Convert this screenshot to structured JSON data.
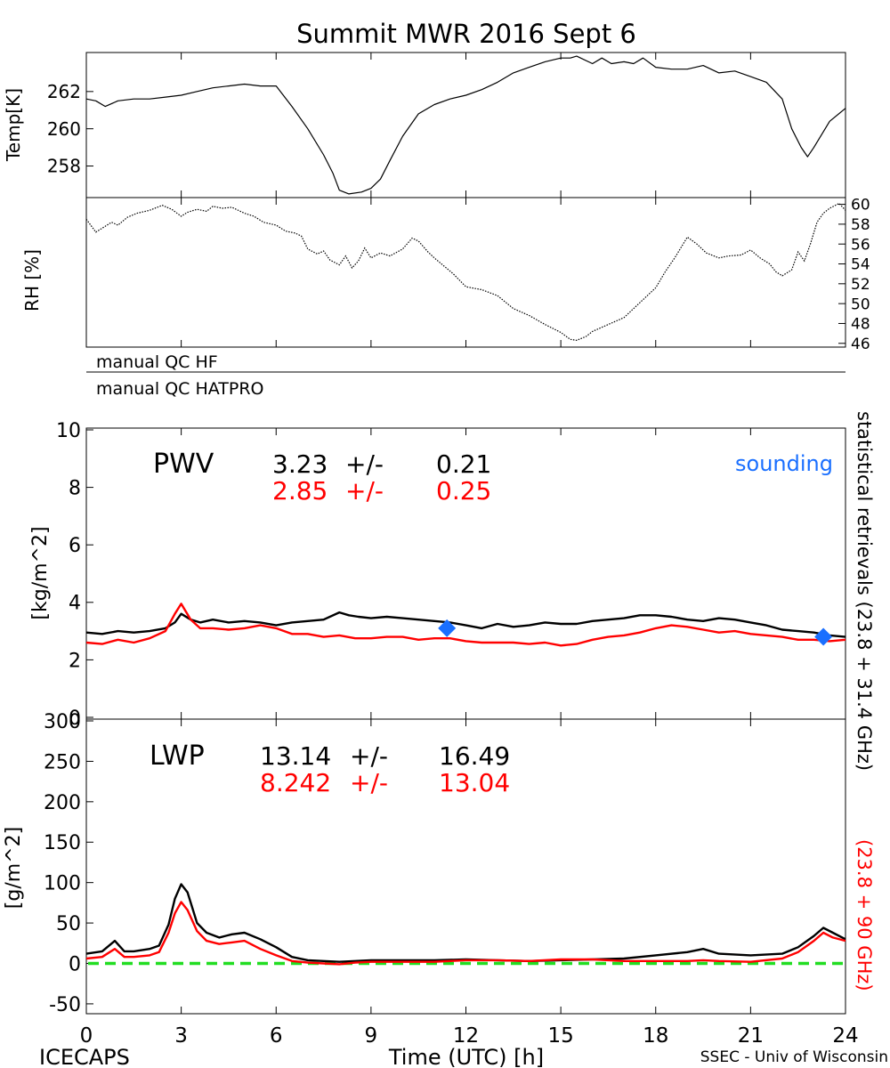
{
  "title": "Summit MWR 2016 Sept  6",
  "footer": {
    "left": "ICECAPS",
    "center": "Time (UTC) [h]",
    "right": "SSEC - Univ of Wisconsin"
  },
  "qc_labels": [
    "manual QC HF",
    "manual QC HATPRO"
  ],
  "right_side_labels": {
    "black": "statistical retrievals (23.8 + 31.4 GHz)",
    "red": "(23.8 + 90 GHz)"
  },
  "colors": {
    "black_series": "#000000",
    "red_series": "#ff0000",
    "sounding": "#1a6fff",
    "zero_line": "#22dd22"
  },
  "chart_data": [
    {
      "id": "temp",
      "type": "line",
      "ylabel": "Temp[K]",
      "ylim": [
        256.4,
        264.0
      ],
      "xlim": [
        0,
        24
      ],
      "yticks": [
        258,
        260,
        262
      ],
      "series": [
        {
          "color": "black",
          "x": [
            0,
            0.3,
            0.6,
            1,
            1.5,
            2,
            2.5,
            3,
            3.5,
            4,
            4.5,
            5,
            5.5,
            6,
            6.5,
            7,
            7.5,
            7.8,
            8,
            8.3,
            8.7,
            9,
            9.3,
            9.6,
            10,
            10.5,
            11,
            11.5,
            12,
            12.5,
            13,
            13.5,
            14,
            14.5,
            15,
            15.3,
            15.5,
            16,
            16.3,
            16.6,
            17,
            17.3,
            17.6,
            18,
            18.5,
            19,
            19.5,
            20,
            20.5,
            21,
            21.5,
            22,
            22.3,
            22.6,
            22.8,
            23,
            23.5,
            24
          ],
          "values": [
            261.6,
            261.5,
            261.2,
            261.5,
            261.6,
            261.6,
            261.7,
            261.8,
            262.0,
            262.2,
            262.3,
            262.4,
            262.3,
            262.3,
            261.2,
            260.0,
            258.6,
            257.6,
            256.7,
            256.5,
            256.6,
            256.8,
            257.3,
            258.3,
            259.6,
            260.8,
            261.3,
            261.6,
            261.8,
            262.1,
            262.5,
            263.0,
            263.3,
            263.6,
            263.8,
            263.8,
            263.9,
            263.5,
            263.8,
            263.5,
            263.6,
            263.5,
            263.8,
            263.3,
            263.2,
            263.2,
            263.4,
            263.0,
            263.1,
            262.8,
            262.5,
            261.6,
            260.0,
            259.0,
            258.5,
            259.0,
            260.4,
            261.1
          ]
        }
      ]
    },
    {
      "id": "rh",
      "type": "scatter",
      "ylabel": "RH [%]",
      "ylim": [
        45.8,
        60.5
      ],
      "xlim": [
        0,
        24
      ],
      "yticks": [
        46,
        48,
        50,
        52,
        54,
        56,
        58,
        60
      ],
      "series": [
        {
          "color": "black",
          "x": [
            0,
            0.3,
            0.5,
            0.8,
            1,
            1.3,
            1.6,
            2,
            2.4,
            2.7,
            3,
            3.2,
            3.5,
            3.8,
            4,
            4.3,
            4.6,
            5,
            5.3,
            5.6,
            6,
            6.3,
            6.6,
            6.8,
            7,
            7.3,
            7.5,
            7.7,
            8,
            8.2,
            8.4,
            8.6,
            8.8,
            9,
            9.3,
            9.6,
            10,
            10.3,
            10.5,
            10.8,
            11,
            11.3,
            11.6,
            12,
            12.5,
            13,
            13.5,
            14,
            14.5,
            15,
            15.3,
            15.5,
            15.8,
            16,
            16.5,
            17,
            17.5,
            18,
            18.3,
            18.6,
            19,
            19.3,
            19.6,
            20,
            20.3,
            20.7,
            21,
            21.3,
            21.6,
            21.8,
            22,
            22.3,
            22.5,
            22.7,
            22.9,
            23.1,
            23.3,
            23.5,
            23.8,
            24
          ],
          "values": [
            58.5,
            57.2,
            57.6,
            58.2,
            57.9,
            58.7,
            59.1,
            59.4,
            59.9,
            59.5,
            58.8,
            59.2,
            59.5,
            59.3,
            59.8,
            59.6,
            59.7,
            59.1,
            58.8,
            58.2,
            57.9,
            57.3,
            57.1,
            56.8,
            55.5,
            55.0,
            55.3,
            54.4,
            53.9,
            54.8,
            53.6,
            54.3,
            55.6,
            54.6,
            55.1,
            54.8,
            55.5,
            56.6,
            56.3,
            55.2,
            54.6,
            53.8,
            53.0,
            51.7,
            51.4,
            50.8,
            49.5,
            48.8,
            47.9,
            47.1,
            46.4,
            46.3,
            46.7,
            47.2,
            47.9,
            48.6,
            50.1,
            51.6,
            53.2,
            54.6,
            56.7,
            56.0,
            55.1,
            54.6,
            54.8,
            54.9,
            55.4,
            54.6,
            54.0,
            53.2,
            52.8,
            53.4,
            55.2,
            54.3,
            56.1,
            58.2,
            59.1,
            59.6,
            60.1,
            59.4
          ]
        }
      ]
    },
    {
      "id": "pwv",
      "type": "line",
      "title": "PWV",
      "ylabel": "[kg/m^2]",
      "ylim": [
        0,
        10
      ],
      "xlim": [
        0,
        24
      ],
      "yticks": [
        0,
        2,
        4,
        6,
        8,
        10
      ],
      "stats": [
        {
          "color": "black",
          "mean": "3.23",
          "pm": "+/-",
          "std": "0.21"
        },
        {
          "color": "red",
          "mean": "2.85",
          "pm": "+/-",
          "std": "0.25"
        }
      ],
      "legend": "sounding",
      "series": [
        {
          "color": "black",
          "x": [
            0,
            0.5,
            1,
            1.5,
            2,
            2.5,
            2.8,
            3,
            3.3,
            3.6,
            4,
            4.5,
            5,
            5.5,
            6,
            6.5,
            7,
            7.5,
            8,
            8.3,
            8.6,
            9,
            9.5,
            10,
            10.5,
            11,
            11.5,
            12,
            12.5,
            13,
            13.5,
            14,
            14.5,
            15,
            15.5,
            16,
            16.5,
            17,
            17.5,
            18,
            18.5,
            19,
            19.5,
            20,
            20.5,
            21,
            21.5,
            22,
            22.5,
            23,
            23.5,
            24
          ],
          "values": [
            2.95,
            2.9,
            3.0,
            2.95,
            3.0,
            3.1,
            3.3,
            3.6,
            3.4,
            3.3,
            3.4,
            3.3,
            3.35,
            3.3,
            3.2,
            3.3,
            3.35,
            3.4,
            3.65,
            3.55,
            3.5,
            3.45,
            3.5,
            3.45,
            3.4,
            3.35,
            3.3,
            3.2,
            3.1,
            3.25,
            3.15,
            3.2,
            3.3,
            3.25,
            3.25,
            3.35,
            3.4,
            3.45,
            3.55,
            3.55,
            3.5,
            3.4,
            3.35,
            3.45,
            3.4,
            3.3,
            3.2,
            3.05,
            3.0,
            2.95,
            2.85,
            2.8
          ]
        },
        {
          "color": "red",
          "x": [
            0,
            0.5,
            1,
            1.5,
            2,
            2.5,
            2.8,
            3,
            3.3,
            3.6,
            4,
            4.5,
            5,
            5.5,
            6,
            6.5,
            7,
            7.5,
            8,
            8.5,
            9,
            9.5,
            10,
            10.5,
            11,
            11.5,
            12,
            12.5,
            13,
            13.5,
            14,
            14.5,
            15,
            15.5,
            16,
            16.5,
            17,
            17.5,
            18,
            18.5,
            19,
            19.5,
            20,
            20.5,
            21,
            21.5,
            22,
            22.5,
            23,
            23.5,
            24
          ],
          "values": [
            2.6,
            2.55,
            2.7,
            2.6,
            2.75,
            3.0,
            3.6,
            3.95,
            3.4,
            3.1,
            3.1,
            3.05,
            3.1,
            3.2,
            3.1,
            2.9,
            2.9,
            2.8,
            2.85,
            2.75,
            2.75,
            2.8,
            2.8,
            2.7,
            2.75,
            2.75,
            2.65,
            2.6,
            2.6,
            2.6,
            2.55,
            2.6,
            2.5,
            2.55,
            2.7,
            2.8,
            2.85,
            2.95,
            3.1,
            3.2,
            3.15,
            3.05,
            2.95,
            3.0,
            2.9,
            2.85,
            2.8,
            2.7,
            2.7,
            2.65,
            2.7
          ]
        }
      ],
      "sounding_points": [
        {
          "x": 11.4,
          "y": 3.1
        },
        {
          "x": 23.3,
          "y": 2.8
        }
      ]
    },
    {
      "id": "lwp",
      "type": "line",
      "title": "LWP",
      "ylabel": "[g/m^2]",
      "ylim": [
        -60,
        300
      ],
      "xlim": [
        0,
        24
      ],
      "xlabel": "Time (UTC) [h]",
      "xticks": [
        0,
        3,
        6,
        9,
        12,
        15,
        18,
        21,
        24
      ],
      "yticks": [
        -50,
        0,
        50,
        100,
        150,
        200,
        250,
        300
      ],
      "stats": [
        {
          "color": "black",
          "mean": "13.14",
          "pm": "+/-",
          "std": "16.49"
        },
        {
          "color": "red",
          "mean": "8.242",
          "pm": "+/-",
          "std": "13.04"
        }
      ],
      "zero_line": 0,
      "series": [
        {
          "color": "black",
          "x": [
            0,
            0.5,
            0.9,
            1.2,
            1.5,
            2,
            2.3,
            2.6,
            2.8,
            3,
            3.2,
            3.5,
            3.8,
            4.2,
            4.6,
            5,
            5.5,
            6,
            6.5,
            7,
            7.5,
            8,
            8.5,
            9,
            10,
            11,
            12,
            13,
            14,
            15,
            16,
            17,
            18,
            19,
            19.5,
            20,
            21,
            22,
            22.5,
            23,
            23.3,
            23.6,
            24
          ],
          "values": [
            12,
            15,
            28,
            15,
            15,
            18,
            22,
            48,
            80,
            98,
            88,
            50,
            38,
            32,
            36,
            38,
            30,
            20,
            8,
            4,
            3,
            2,
            3,
            4,
            4,
            4,
            5,
            4,
            3,
            4,
            5,
            6,
            10,
            14,
            18,
            12,
            10,
            12,
            20,
            34,
            44,
            38,
            30
          ]
        },
        {
          "color": "red",
          "x": [
            0,
            0.5,
            0.9,
            1.2,
            1.5,
            2,
            2.3,
            2.6,
            2.8,
            3,
            3.2,
            3.5,
            3.8,
            4.2,
            4.6,
            5,
            5.5,
            6,
            6.5,
            7,
            7.5,
            8,
            8.5,
            9,
            10,
            11,
            12,
            13,
            14,
            15,
            16,
            17,
            18,
            19,
            19.5,
            20,
            21,
            22,
            22.5,
            23,
            23.3,
            23.6,
            24
          ],
          "values": [
            6,
            8,
            18,
            8,
            8,
            10,
            14,
            38,
            62,
            76,
            66,
            40,
            28,
            24,
            26,
            28,
            18,
            10,
            3,
            1,
            0,
            -1,
            1,
            2,
            2,
            2,
            4,
            4,
            3,
            5,
            5,
            3,
            3,
            3,
            4,
            3,
            2,
            6,
            14,
            28,
            38,
            32,
            28
          ]
        }
      ]
    }
  ]
}
